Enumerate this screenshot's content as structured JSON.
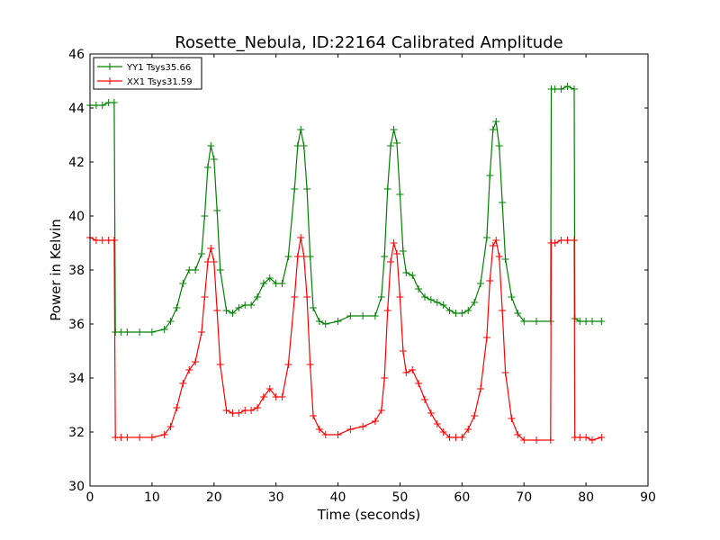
{
  "chart_data": {
    "type": "line",
    "title": "Rosette_Nebula, ID:22164 Calibrated Amplitude",
    "xlabel": "Time (seconds)",
    "ylabel": "Power in Kelvin",
    "xlim": [
      0,
      90
    ],
    "ylim": [
      30,
      46
    ],
    "xticks": [
      0,
      10,
      20,
      30,
      40,
      50,
      60,
      70,
      80,
      90
    ],
    "yticks": [
      30,
      32,
      34,
      36,
      38,
      40,
      42,
      44,
      46
    ],
    "grid": false,
    "legend_position": "top-left",
    "marker": "plus",
    "series": [
      {
        "name": "YY1 Tsys35.66",
        "color": "#008000",
        "x": [
          0,
          1,
          2,
          3,
          3.9,
          4.1,
          5,
          6,
          8,
          10,
          12,
          13,
          14,
          15,
          16,
          17,
          18,
          18.5,
          19,
          19.5,
          20,
          20.5,
          21,
          22,
          23,
          24,
          25,
          26,
          27,
          28,
          29,
          30,
          31,
          32,
          33,
          33.5,
          34,
          34.5,
          35,
          35.5,
          36,
          37,
          38,
          40,
          42,
          44,
          46,
          47,
          47.5,
          48,
          48.5,
          49,
          49.5,
          50,
          50.5,
          51,
          52,
          53,
          54,
          55,
          56,
          57,
          58,
          59,
          60,
          61,
          62,
          63,
          64,
          64.5,
          65,
          65.5,
          66,
          66.5,
          67,
          68,
          69,
          70,
          72,
          74.3,
          74.4,
          75,
          76,
          77,
          78.1,
          78.2,
          79,
          80,
          81,
          82.5
        ],
        "y": [
          44.1,
          44.1,
          44.1,
          44.2,
          44.2,
          35.7,
          35.7,
          35.7,
          35.7,
          35.7,
          35.8,
          36.1,
          36.6,
          37.5,
          38.0,
          38.0,
          38.6,
          40.0,
          41.8,
          42.6,
          42.1,
          40.2,
          38.0,
          36.5,
          36.4,
          36.6,
          36.7,
          36.7,
          37.0,
          37.5,
          37.7,
          37.5,
          37.5,
          38.5,
          41.0,
          42.6,
          43.2,
          42.6,
          41.0,
          38.5,
          36.6,
          36.1,
          36.0,
          36.1,
          36.3,
          36.3,
          36.3,
          37.0,
          38.5,
          41.0,
          42.6,
          43.2,
          42.7,
          40.8,
          38.7,
          37.9,
          37.8,
          37.3,
          37.0,
          36.9,
          36.8,
          36.7,
          36.5,
          36.4,
          36.4,
          36.5,
          36.8,
          37.5,
          39.2,
          41.5,
          43.2,
          43.5,
          42.6,
          40.5,
          38.4,
          37.0,
          36.4,
          36.1,
          36.1,
          36.1,
          44.7,
          44.7,
          44.7,
          44.8,
          44.7,
          36.2,
          36.1,
          36.1,
          36.1,
          36.1
        ]
      },
      {
        "name": "XX1 Tsys31.59",
        "color": "#ff0000",
        "x": [
          0,
          1,
          2,
          3,
          3.9,
          4.1,
          5,
          6,
          8,
          10,
          12,
          13,
          14,
          15,
          16,
          17,
          18,
          18.5,
          19,
          19.5,
          20,
          20.5,
          21,
          22,
          23,
          24,
          25,
          26,
          27,
          28,
          29,
          30,
          31,
          32,
          33,
          33.5,
          34,
          34.5,
          35,
          35.5,
          36,
          37,
          38,
          40,
          42,
          44,
          46,
          47,
          47.5,
          48,
          48.5,
          49,
          49.5,
          50,
          50.5,
          51,
          52,
          53,
          54,
          55,
          56,
          57,
          58,
          59,
          60,
          61,
          62,
          63,
          64,
          64.5,
          65,
          65.5,
          66,
          66.5,
          67,
          68,
          69,
          70,
          72,
          74.3,
          74.4,
          75,
          76,
          77,
          78.1,
          78.2,
          79,
          80,
          81,
          82.5
        ],
        "y": [
          39.2,
          39.1,
          39.1,
          39.1,
          39.1,
          31.8,
          31.8,
          31.8,
          31.8,
          31.8,
          31.9,
          32.2,
          32.9,
          33.8,
          34.3,
          34.6,
          35.7,
          37.0,
          38.3,
          38.8,
          38.3,
          36.5,
          34.5,
          32.8,
          32.7,
          32.7,
          32.8,
          32.8,
          32.9,
          33.3,
          33.6,
          33.3,
          33.3,
          34.5,
          37.0,
          38.5,
          39.2,
          38.5,
          37.0,
          34.5,
          32.6,
          32.1,
          31.9,
          31.9,
          32.1,
          32.2,
          32.4,
          32.8,
          34.0,
          36.5,
          38.3,
          39.0,
          38.6,
          37.0,
          35.0,
          34.2,
          34.3,
          33.8,
          33.2,
          32.7,
          32.3,
          32.0,
          31.8,
          31.8,
          31.8,
          32.1,
          32.6,
          33.6,
          35.5,
          37.6,
          38.9,
          39.1,
          38.5,
          36.5,
          34.2,
          32.5,
          31.9,
          31.7,
          31.7,
          31.7,
          39.0,
          39.0,
          39.1,
          39.1,
          39.1,
          31.8,
          31.8,
          31.8,
          31.7,
          31.8
        ]
      }
    ]
  }
}
